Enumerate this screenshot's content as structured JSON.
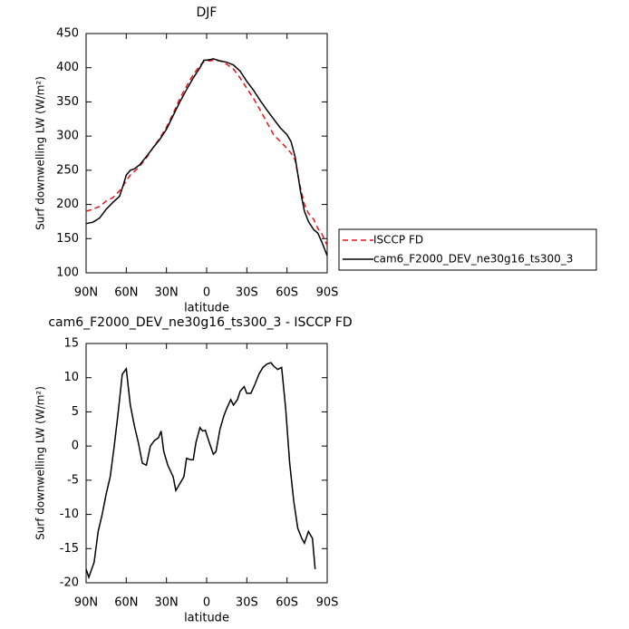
{
  "chart_data": [
    {
      "type": "line",
      "title": "DJF",
      "x_label": "latitude",
      "y_label": "Surf downwelling LW (W/m²)",
      "x": [
        90,
        85,
        80,
        75,
        70,
        65,
        62,
        60,
        57,
        54,
        50,
        45,
        40,
        35,
        30,
        25,
        20,
        15,
        10,
        5,
        2,
        0,
        -3,
        -5,
        -10,
        -15,
        -20,
        -25,
        -30,
        -35,
        -40,
        -45,
        -50,
        -55,
        -60,
        -63,
        -66,
        -70,
        -73,
        -76,
        -80,
        -83,
        -86,
        -90
      ],
      "series": [
        {
          "name": "ISCCP FD",
          "color": "#e8141c",
          "line_style": "dashed",
          "values": [
            190,
            193,
            197,
            205,
            210,
            220,
            228,
            235,
            243,
            248,
            256,
            268,
            283,
            297,
            313,
            333,
            355,
            373,
            390,
            403,
            409,
            410,
            410,
            411,
            410,
            405,
            398,
            385,
            370,
            355,
            338,
            320,
            302,
            292,
            282,
            275,
            265,
            225,
            200,
            187,
            178,
            165,
            157,
            140
          ]
        },
        {
          "name": "cam6_F2000_DEV_ne30g16_ts300_3",
          "color": "#000000",
          "line_style": "solid",
          "values": [
            172,
            174,
            180,
            193,
            203,
            212,
            230,
            243,
            250,
            252,
            258,
            270,
            283,
            295,
            310,
            330,
            350,
            368,
            385,
            400,
            411,
            411,
            412,
            413,
            410,
            408,
            404,
            395,
            380,
            367,
            352,
            338,
            325,
            312,
            302,
            292,
            270,
            220,
            190,
            175,
            163,
            158,
            145,
            125
          ]
        }
      ],
      "xlim": [
        90,
        -90
      ],
      "ylim": [
        100,
        450
      ],
      "xticks": [
        {
          "value": 90,
          "label": "90N"
        },
        {
          "value": 60,
          "label": "60N"
        },
        {
          "value": 30,
          "label": "30N"
        },
        0,
        {
          "value": -30,
          "label": "30S"
        },
        {
          "value": -60,
          "label": "60S"
        },
        {
          "value": -90,
          "label": "90S"
        }
      ],
      "yticks": [
        100,
        150,
        200,
        250,
        300,
        350,
        400,
        450
      ],
      "legend": "right"
    },
    {
      "type": "line",
      "title": "cam6_F2000_DEV_ne30g16_ts300_3 - ISCCP FD",
      "x_label": "latitude",
      "y_label": "Surf downwelling LW (W/m²)",
      "x": [
        90,
        88,
        84,
        81,
        78,
        75,
        72,
        69,
        66,
        63,
        60,
        57,
        54,
        51,
        48,
        45,
        42,
        39,
        36,
        34,
        32,
        29,
        25,
        23,
        20,
        17,
        15,
        12,
        10,
        8,
        5,
        3,
        1,
        -2,
        -5,
        -7,
        -10,
        -13,
        -15,
        -18,
        -20,
        -23,
        -25,
        -28,
        -30,
        -33,
        -36,
        -39,
        -42,
        -45,
        -48,
        -50,
        -53,
        -56,
        -59,
        -62,
        -65,
        -68,
        -71,
        -73,
        -76,
        -79,
        -81
      ],
      "values": [
        -18,
        -19.2,
        -17,
        -12.5,
        -10,
        -7,
        -4.5,
        0,
        5,
        10.5,
        11.3,
        6,
        3,
        0.5,
        -2.5,
        -2.8,
        0,
        0.8,
        1.2,
        2.2,
        -0.8,
        -2.8,
        -4.5,
        -6.5,
        -5.5,
        -4.5,
        -1.8,
        -2,
        -2,
        0.5,
        2.7,
        2.2,
        2.3,
        0.5,
        -1.2,
        -0.8,
        2.5,
        4.5,
        5.5,
        6.8,
        6,
        6.8,
        8,
        8.7,
        7.7,
        7.7,
        9,
        10.5,
        11.5,
        12,
        12.2,
        11.7,
        11.2,
        11.5,
        5.5,
        -2.5,
        -8,
        -12,
        -13.5,
        -14.2,
        -12.5,
        -13.5,
        -18
      ],
      "color": "#000000",
      "xlim": [
        90,
        -90
      ],
      "ylim": [
        -20,
        15
      ],
      "xticks": [
        {
          "value": 90,
          "label": "90N"
        },
        {
          "value": 60,
          "label": "60N"
        },
        {
          "value": 30,
          "label": "30N"
        },
        0,
        {
          "value": -30,
          "label": "30S"
        },
        {
          "value": -60,
          "label": "60S"
        },
        {
          "value": -90,
          "label": "90S"
        }
      ],
      "yticks": [
        -20,
        -15,
        -10,
        -5,
        0,
        5,
        10,
        15
      ]
    }
  ]
}
